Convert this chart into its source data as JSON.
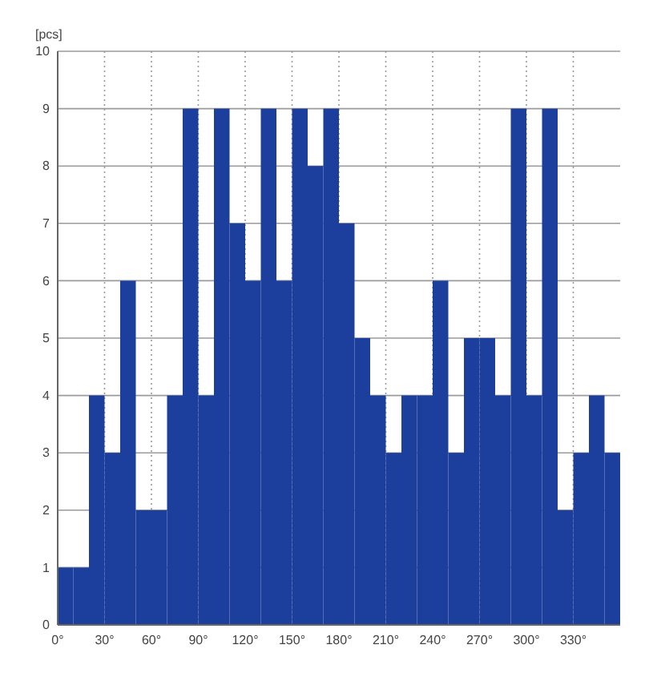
{
  "chart_data": {
    "type": "histogram",
    "ylabel": "[pcs]",
    "color": "#1c3f9e",
    "bins": [
      0,
      10,
      20,
      30,
      40,
      50,
      60,
      70,
      80,
      90,
      100,
      110,
      120,
      130,
      140,
      150,
      160,
      170,
      180,
      190,
      200,
      210,
      220,
      230,
      240,
      250,
      260,
      270,
      280,
      290,
      300,
      310,
      320,
      330,
      340,
      350,
      360
    ],
    "values": [
      1,
      1,
      4,
      3,
      6,
      2,
      2,
      4,
      9,
      4,
      9,
      7,
      6,
      9,
      6,
      9,
      8,
      9,
      7,
      5,
      4,
      3,
      4,
      4,
      6,
      3,
      5,
      5,
      4,
      9,
      4,
      9,
      2,
      3,
      4,
      3
    ],
    "xlim": [
      0,
      360
    ],
    "ylim": [
      0,
      10
    ],
    "xticks": [
      {
        "value": 0,
        "label": "0°"
      },
      {
        "value": 30,
        "label": "30°"
      },
      {
        "value": 60,
        "label": "60°"
      },
      {
        "value": 90,
        "label": "90°"
      },
      {
        "value": 120,
        "label": "120°"
      },
      {
        "value": 150,
        "label": "150°"
      },
      {
        "value": 180,
        "label": "180°"
      },
      {
        "value": 210,
        "label": "210°"
      },
      {
        "value": 240,
        "label": "240°"
      },
      {
        "value": 270,
        "label": "270°"
      },
      {
        "value": 300,
        "label": "300°"
      },
      {
        "value": 330,
        "label": "330°"
      }
    ],
    "yticks": [
      0,
      1,
      2,
      3,
      4,
      5,
      6,
      7,
      8,
      9,
      10
    ],
    "grid": true
  }
}
